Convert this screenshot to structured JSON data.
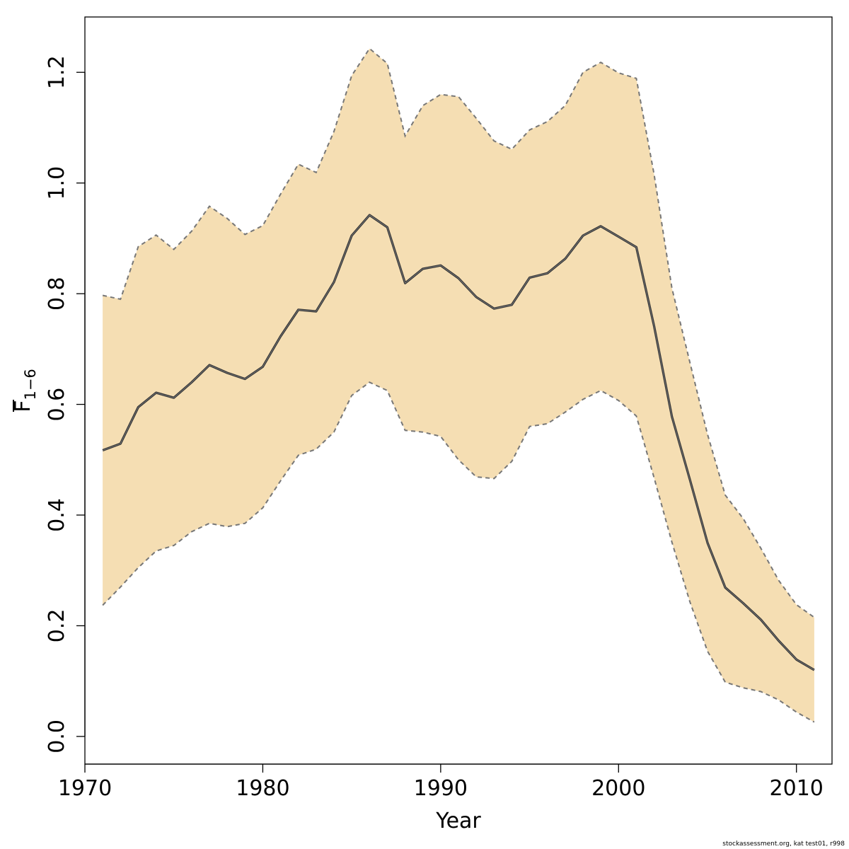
{
  "chart_data": {
    "type": "line",
    "title": "",
    "xlabel": "Year",
    "ylabel_main": "F",
    "ylabel_subscript": "1−6",
    "xlim": [
      1970,
      2012
    ],
    "ylim": [
      -0.05,
      1.3
    ],
    "x_ticks": [
      1970,
      1980,
      1990,
      2000,
      2010
    ],
    "y_ticks": [
      0.0,
      0.2,
      0.4,
      0.6,
      0.8,
      1.0,
      1.2
    ],
    "y_tick_labels": [
      "0.0",
      "0.2",
      "0.4",
      "0.6",
      "0.8",
      "1.0",
      "1.2"
    ],
    "grid": false,
    "legend": "none",
    "colors": {
      "band_fill": "#F5DEB3",
      "estimate_line": "#333333",
      "bound_line": "#777777"
    },
    "x": [
      1971,
      1972,
      1973,
      1974,
      1975,
      1976,
      1977,
      1978,
      1979,
      1980,
      1981,
      1982,
      1983,
      1984,
      1985,
      1986,
      1987,
      1988,
      1989,
      1990,
      1991,
      1992,
      1993,
      1994,
      1995,
      1996,
      1997,
      1998,
      1999,
      2000,
      2001,
      2002,
      2003,
      2004,
      2005,
      2006,
      2007,
      2008,
      2009,
      2010,
      2011
    ],
    "series": [
      {
        "role": "estimate",
        "values": [
          0.517,
          0.529,
          0.595,
          0.621,
          0.612,
          0.64,
          0.671,
          0.657,
          0.646,
          0.668,
          0.723,
          0.771,
          0.768,
          0.821,
          0.905,
          0.942,
          0.92,
          0.819,
          0.845,
          0.851,
          0.828,
          0.794,
          0.773,
          0.78,
          0.829,
          0.837,
          0.863,
          0.905,
          0.922,
          0.903,
          0.884,
          0.741,
          0.578,
          0.465,
          0.35,
          0.269,
          0.241,
          0.211,
          0.173,
          0.139,
          0.12
        ]
      },
      {
        "role": "upper",
        "values": [
          0.797,
          0.79,
          0.885,
          0.906,
          0.88,
          0.913,
          0.958,
          0.936,
          0.907,
          0.923,
          0.98,
          1.034,
          1.019,
          1.093,
          1.194,
          1.243,
          1.216,
          1.085,
          1.14,
          1.16,
          1.156,
          1.117,
          1.076,
          1.061,
          1.096,
          1.111,
          1.14,
          1.2,
          1.218,
          1.199,
          1.189,
          1.015,
          0.81,
          0.677,
          0.546,
          0.436,
          0.394,
          0.34,
          0.282,
          0.238,
          0.215
        ]
      },
      {
        "role": "lower",
        "values": [
          0.237,
          0.27,
          0.305,
          0.335,
          0.345,
          0.37,
          0.385,
          0.379,
          0.385,
          0.413,
          0.462,
          0.508,
          0.519,
          0.55,
          0.616,
          0.64,
          0.625,
          0.553,
          0.55,
          0.542,
          0.5,
          0.469,
          0.466,
          0.497,
          0.56,
          0.565,
          0.586,
          0.609,
          0.625,
          0.607,
          0.579,
          0.467,
          0.351,
          0.244,
          0.154,
          0.098,
          0.088,
          0.081,
          0.066,
          0.044,
          0.026
        ]
      }
    ]
  },
  "footer": {
    "note": "stockassessment.org, kat  test01, r998"
  }
}
